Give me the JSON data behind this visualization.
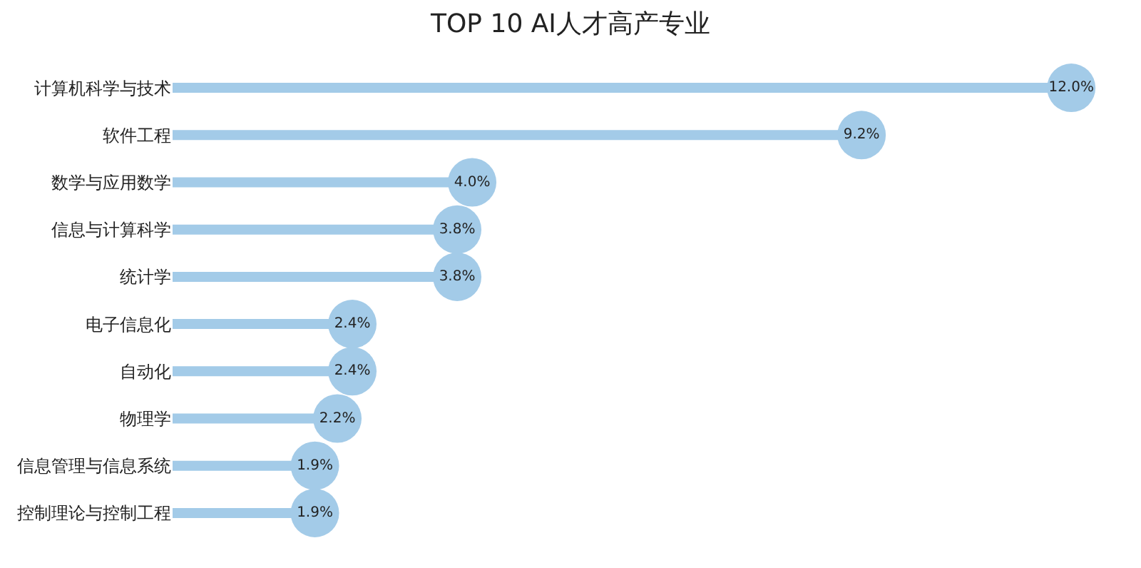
{
  "chart_data": {
    "type": "lollipop",
    "orientation": "horizontal",
    "title": "TOP 10 AI人才高产专业",
    "categories": [
      "计算机科学与技术",
      "软件工程",
      "数学与应用数学",
      "信息与计算科学",
      "统计学",
      "电子信息化",
      "自动化",
      "物理学",
      "信息管理与信息系统",
      "控制理论与控制工程"
    ],
    "values": [
      12.0,
      9.2,
      4.0,
      3.8,
      3.8,
      2.4,
      2.4,
      2.2,
      1.9,
      1.9
    ],
    "value_labels": [
      "12.0%",
      "9.2%",
      "4.0%",
      "3.8%",
      "3.8%",
      "2.4%",
      "2.4%",
      "2.2%",
      "1.9%",
      "1.9%"
    ],
    "color": "#a3cbe8",
    "marker": "circle",
    "tick_labels": "y"
  }
}
